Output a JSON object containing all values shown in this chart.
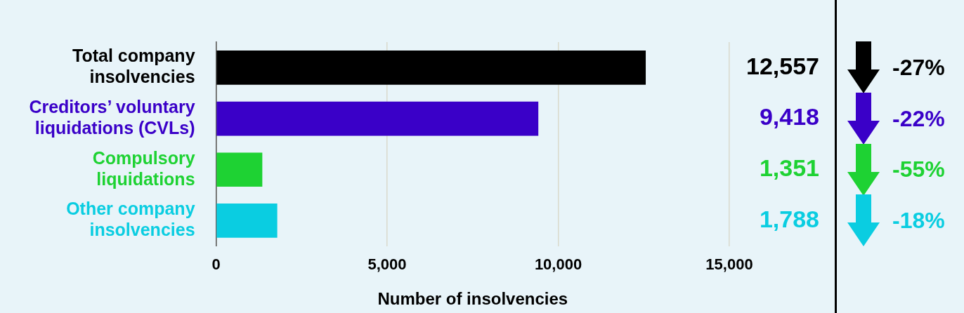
{
  "chart_data": {
    "type": "bar",
    "orientation": "horizontal",
    "categories": [
      "Total company insolvencies",
      "Creditors’ voluntary liquidations (CVLs)",
      "Compulsory liquidations",
      "Other company insolvencies"
    ],
    "values": [
      12557,
      9418,
      1351,
      1788
    ],
    "colors": [
      "#000000",
      "#3a00c8",
      "#1ed233",
      "#0acde1"
    ],
    "value_labels": [
      "12,557",
      "9,418",
      "1,351",
      "1,788"
    ],
    "xlim": [
      0,
      15000
    ],
    "xticks": [
      0,
      {
        "value": 5000,
        "label": "5,000"
      },
      {
        "value": 10000,
        "label": "10,000"
      },
      {
        "value": 15000,
        "label": "15,000"
      }
    ],
    "xlabel": "Number of insolvencies",
    "grid": "x",
    "annotations": [
      "-27%",
      "-22%",
      "-55%",
      "-18%"
    ]
  }
}
